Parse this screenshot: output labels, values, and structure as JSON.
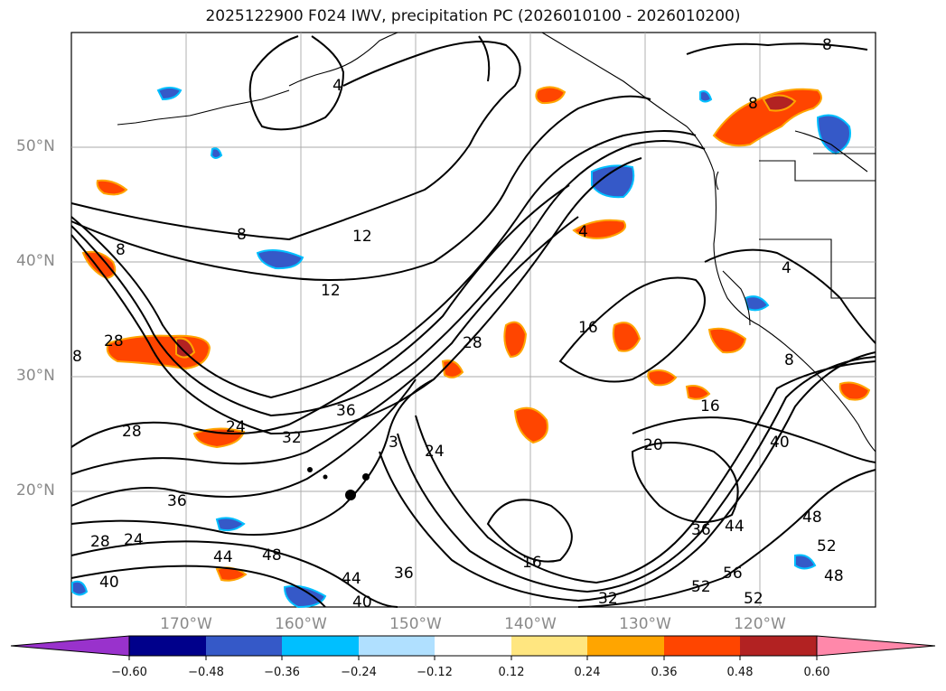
{
  "title": "2025122900 F024 IWV, precipitation PC (2026010100 - 2026010200)",
  "lat_labels": [
    "50°N",
    "40°N",
    "30°N",
    "20°N"
  ],
  "lon_labels": [
    "170°W",
    "160°W",
    "150°W",
    "140°W",
    "130°W",
    "120°W"
  ],
  "colorbar": {
    "tick_labels": [
      "−0.60",
      "−0.48",
      "−0.36",
      "−0.24",
      "−0.12",
      "0.12",
      "0.24",
      "0.36",
      "0.48",
      "0.60"
    ],
    "colors": [
      "#9932cc",
      "#00008b",
      "#3559c8",
      "#00bfff",
      "#b0e0ff",
      "#ffffff",
      "#ffe680",
      "#ffa500",
      "#ff4500",
      "#b22222",
      "#ff88aa"
    ]
  },
  "contour_labels": [
    "4",
    "8",
    "8",
    "8",
    "8",
    "8",
    "12",
    "12",
    "16",
    "16",
    "16",
    "20",
    "24",
    "24",
    "24",
    "28",
    "28",
    "28",
    "28",
    "32",
    "32",
    "36",
    "36",
    "36",
    "36",
    "40",
    "40",
    "40",
    "44",
    "44",
    "44",
    "48",
    "48",
    "48",
    "52",
    "52",
    "52",
    "56",
    "4",
    "4",
    "8",
    "3"
  ]
}
